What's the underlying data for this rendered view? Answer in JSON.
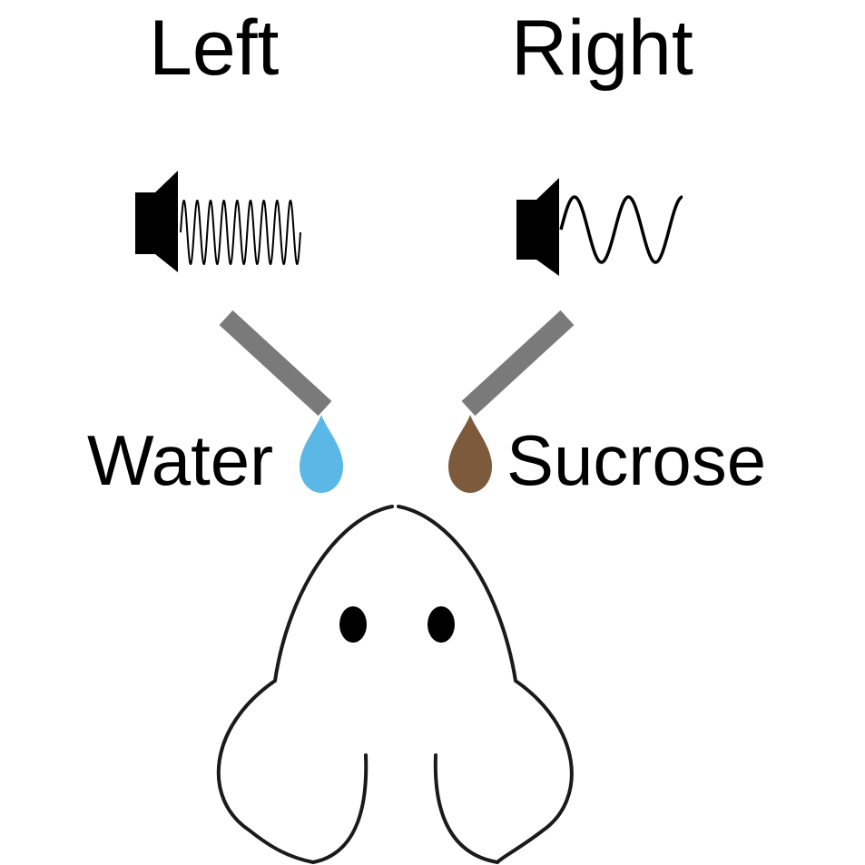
{
  "labels": {
    "left": "Left",
    "right": "Right",
    "left_liquid": "Water",
    "right_liquid": "Sucrose"
  },
  "sounds": {
    "left": {
      "icon": "speaker-icon",
      "waveform": "high-frequency"
    },
    "right": {
      "icon": "speaker-icon",
      "waveform": "low-frequency"
    }
  },
  "colors": {
    "water_drop": "#5bb8e6",
    "sucrose_drop": "#7d5a3c",
    "spout": "#7a7a7a",
    "ink": "#000000"
  },
  "subject": {
    "icon": "mouse-head-icon"
  }
}
